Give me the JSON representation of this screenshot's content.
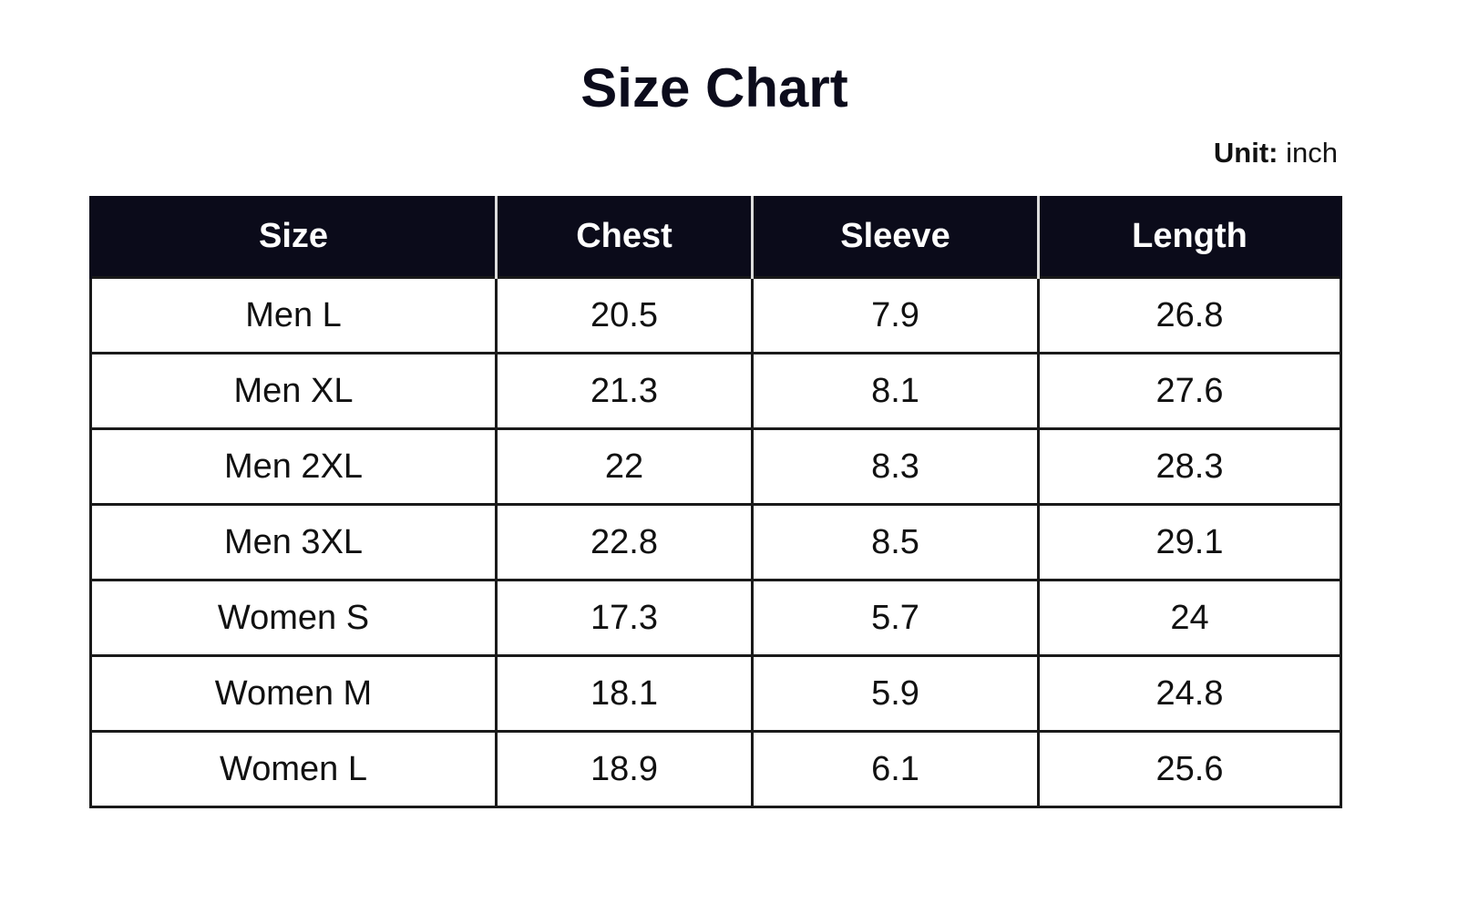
{
  "title": "Size Chart",
  "unit": {
    "label": "Unit:",
    "value": "inch"
  },
  "table": {
    "headers": [
      "Size",
      "Chest",
      "Sleeve",
      "Length"
    ],
    "rows": [
      [
        "Men L",
        20.5,
        7.9,
        26.8
      ],
      [
        "Men XL",
        21.3,
        8.1,
        27.6
      ],
      [
        "Men 2XL",
        22,
        8.3,
        28.3
      ],
      [
        "Men 3XL",
        22.8,
        8.5,
        29.1
      ],
      [
        "Women S",
        17.3,
        5.7,
        24
      ],
      [
        "Women M",
        18.1,
        5.9,
        24.8
      ],
      [
        "Women L",
        18.9,
        6.1,
        25.6
      ]
    ]
  }
}
